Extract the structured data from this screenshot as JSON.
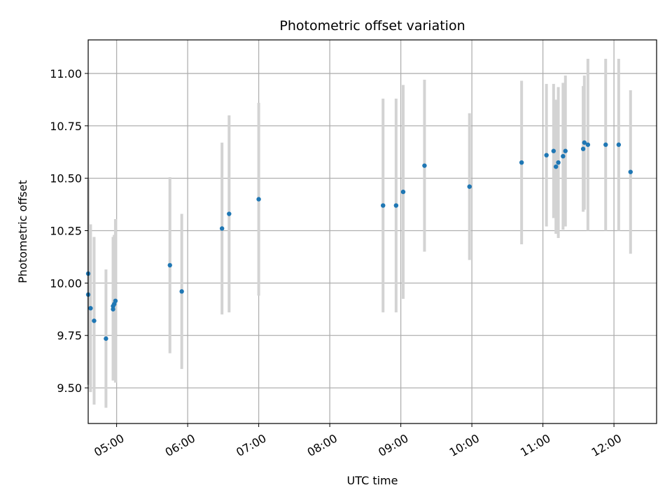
{
  "chart_data": {
    "type": "scatter",
    "title": "Photometric offset variation",
    "xlabel": "UTC time",
    "ylabel": "Photometric offset",
    "xlim": [
      "04:36",
      "12:36"
    ],
    "ylim": [
      9.33,
      11.16
    ],
    "grid": true,
    "x_ticks": [
      "05:00",
      "06:00",
      "07:00",
      "08:00",
      "09:00",
      "10:00",
      "11:00",
      "12:00"
    ],
    "y_ticks": [
      "9.50",
      "9.75",
      "10.00",
      "10.25",
      "10.50",
      "10.75",
      "11.00"
    ],
    "colors": {
      "points": "#1f77b4",
      "errorbars": "#d3d3d3",
      "grid": "#b0b0b0"
    },
    "series": [
      {
        "points": [
          {
            "x": "04:36",
            "y": 10.045,
            "err": 0.45
          },
          {
            "x": "04:36",
            "y": 9.945,
            "err": 0.43
          },
          {
            "x": "04:38",
            "y": 9.88,
            "err": 0.4
          },
          {
            "x": "04:41",
            "y": 9.82,
            "err": 0.4
          },
          {
            "x": "04:51",
            "y": 9.735,
            "err": 0.33
          },
          {
            "x": "04:57",
            "y": 9.89,
            "err": 0.33
          },
          {
            "x": "04:57",
            "y": 9.875,
            "err": 0.34
          },
          {
            "x": "04:58",
            "y": 9.9,
            "err": 0.33
          },
          {
            "x": "04:59",
            "y": 9.915,
            "err": 0.39
          },
          {
            "x": "05:45",
            "y": 10.085,
            "err": 0.42
          },
          {
            "x": "05:55",
            "y": 9.96,
            "err": 0.37
          },
          {
            "x": "06:29",
            "y": 10.26,
            "err": 0.41
          },
          {
            "x": "06:35",
            "y": 10.33,
            "err": 0.47
          },
          {
            "x": "07:00",
            "y": 10.4,
            "err": 0.46
          },
          {
            "x": "08:45",
            "y": 10.37,
            "err": 0.51
          },
          {
            "x": "08:56",
            "y": 10.37,
            "err": 0.51
          },
          {
            "x": "09:02",
            "y": 10.435,
            "err": 0.51
          },
          {
            "x": "09:20",
            "y": 10.56,
            "err": 0.41
          },
          {
            "x": "09:58",
            "y": 10.46,
            "err": 0.35
          },
          {
            "x": "10:42",
            "y": 10.575,
            "err": 0.39
          },
          {
            "x": "11:03",
            "y": 10.61,
            "err": 0.34
          },
          {
            "x": "11:09",
            "y": 10.63,
            "err": 0.32
          },
          {
            "x": "11:11",
            "y": 10.555,
            "err": 0.32
          },
          {
            "x": "11:13",
            "y": 10.575,
            "err": 0.36
          },
          {
            "x": "11:17",
            "y": 10.605,
            "err": 0.35
          },
          {
            "x": "11:19",
            "y": 10.63,
            "err": 0.36
          },
          {
            "x": "11:34",
            "y": 10.64,
            "err": 0.3
          },
          {
            "x": "11:35",
            "y": 10.67,
            "err": 0.32
          },
          {
            "x": "11:38",
            "y": 10.66,
            "err": 0.41
          },
          {
            "x": "11:53",
            "y": 10.66,
            "err": 0.41
          },
          {
            "x": "12:04",
            "y": 10.66,
            "err": 0.41
          },
          {
            "x": "12:14",
            "y": 10.53,
            "err": 0.39
          }
        ]
      }
    ]
  }
}
